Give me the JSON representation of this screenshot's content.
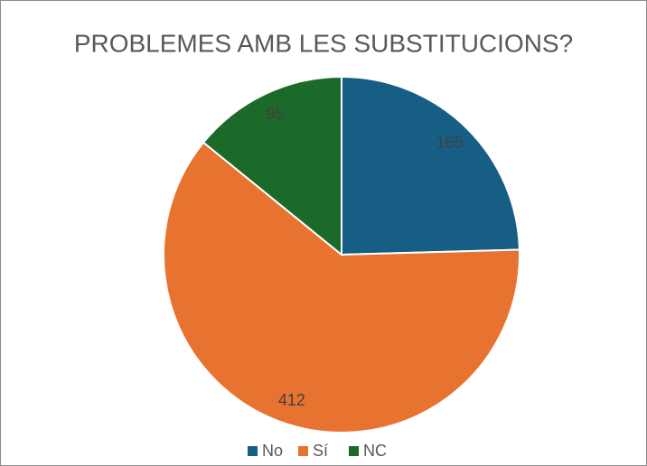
{
  "chart_data": {
    "type": "pie",
    "title": "PROBLEMES AMB LES SUBSTITUCIONS?",
    "categories": [
      "No",
      "Sí",
      "NC"
    ],
    "values": [
      165,
      412,
      95
    ],
    "colors": [
      "#175e84",
      "#e87331",
      "#1c6a29"
    ],
    "legend": "bottom"
  }
}
